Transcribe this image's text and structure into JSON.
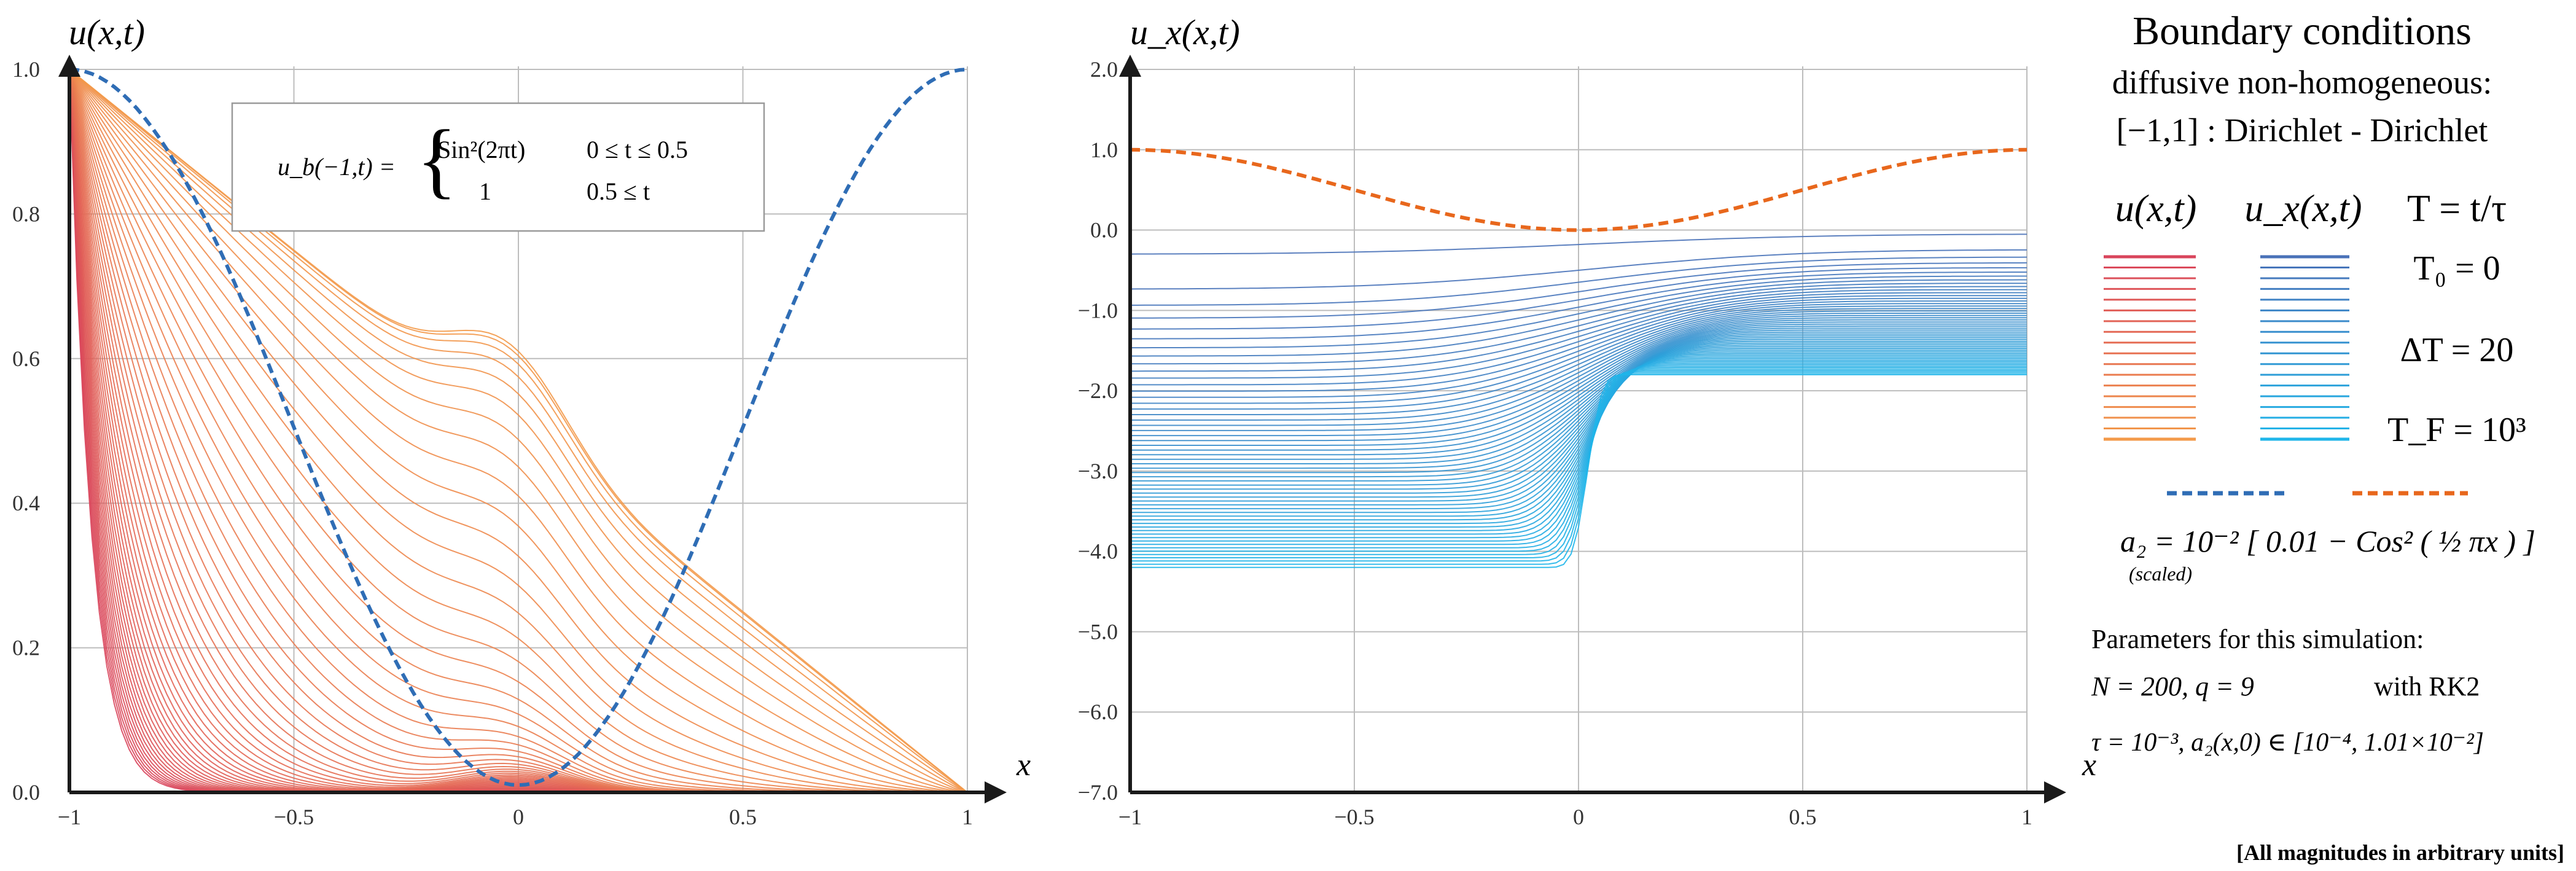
{
  "chart_data": [
    {
      "type": "line",
      "ylabel": "u(x,t)",
      "xlabel": "x",
      "xlim": [
        -1,
        1
      ],
      "ylim": [
        0,
        1
      ],
      "x_ticks": [
        "−1",
        "−0.5",
        "0",
        "0.5",
        "1"
      ],
      "y_ticks": [
        "0.0",
        "0.2",
        "0.4",
        "0.6",
        "0.8",
        "1.0"
      ],
      "grid": true,
      "boundary_condition": {
        "lhs": "u_b(−1,t) =",
        "row1_expr": "Sin²(2πt)",
        "row1_cond": "0 ≤ t ≤ 0.5",
        "row2_expr": "1",
        "row2_cond": "0.5 ≤ t"
      },
      "series": [
        {
          "style": "red-to-orange family, T0 = 0 … TF = 10³, ΔT = 20",
          "color_start": "#d9455c",
          "color_end": "#f07a20"
        },
        {
          "style": "blue dashed",
          "color": "#2f6db5",
          "x": [
            -1,
            -0.75,
            -0.5,
            -0.25,
            0,
            0.25,
            0.5,
            0.75,
            1
          ],
          "y": [
            1.0,
            0.853,
            0.5,
            0.147,
            0.01,
            0.147,
            0.5,
            0.853,
            1.0
          ]
        }
      ]
    },
    {
      "type": "line",
      "ylabel": "u_x(x,t)",
      "xlabel": "x",
      "xlim": [
        -1,
        1
      ],
      "ylim": [
        -7,
        2
      ],
      "x_ticks": [
        "−1",
        "−0.5",
        "0",
        "0.5",
        "1"
      ],
      "y_ticks": [
        "2.0",
        "1.0",
        "0.0",
        "−1.0",
        "−2.0",
        "−3.0",
        "−4.0",
        "−5.0",
        "−6.0",
        "−7.0"
      ],
      "grid": true,
      "series": [
        {
          "style": "dark-blue to cyan family",
          "color_start": "#2e5aa8",
          "color_end": "#16b4ec"
        },
        {
          "style": "orange dashed",
          "color": "#e8671c",
          "x": [
            -1,
            -0.75,
            -0.5,
            -0.25,
            0,
            0.25,
            0.5,
            0.75,
            1
          ],
          "y": [
            1.0,
            0.853,
            0.5,
            0.147,
            0.0,
            0.147,
            0.5,
            0.853,
            1.0
          ]
        }
      ]
    }
  ],
  "legend": {
    "title": "Boundary conditions",
    "subtitle1": "diffusive non-homogeneous:",
    "subtitle2": "[−1,1] : Dirichlet - Dirichlet",
    "col_u": "u(x,t)",
    "col_ux": "u_x(x,t)",
    "col_T": "T = t/τ",
    "t0": "T₀ = 0",
    "dt": "ΔT = 20",
    "tf": "T_F = 10³",
    "a2_expr": "a₂ = 10⁻² [ 0.01 − Cos² ( ½ πx ) ]",
    "scaled": "(scaled)",
    "params_title": "Parameters for this simulation:",
    "params_line1": "N = 200,  q = 9",
    "params_rk": "with RK2",
    "params_line2": "τ = 10⁻³,  a₂(x,0) ∈ [10⁻⁴, 1.01×10⁻²]",
    "footer": "[All magnitudes in arbitrary units]",
    "colors": {
      "u_start": "#d9455c",
      "u_end": "#f39a4a",
      "ux_start": "#4a72b8",
      "ux_end": "#1fb6ea",
      "dash_blue": "#2f6db5",
      "dash_orange": "#e8671c"
    }
  }
}
